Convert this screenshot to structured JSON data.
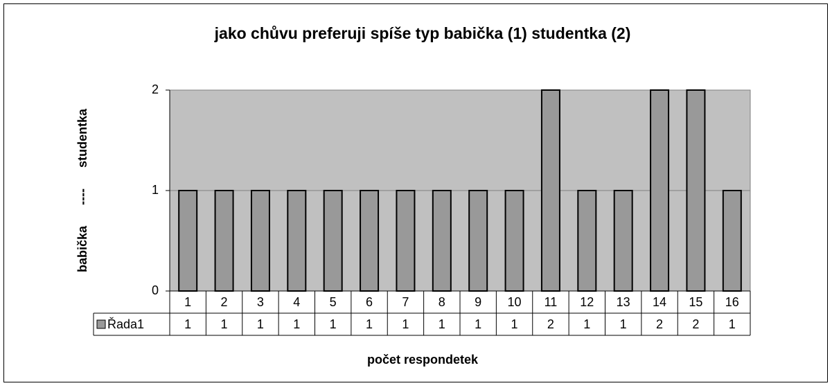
{
  "chart_data": {
    "type": "bar",
    "title": "jako chůvu preferuji spíše typ babička (1) studentka (2)",
    "x_label": "počet respondetek",
    "y_label": "babička      ----      studentka",
    "categories": [
      "1",
      "2",
      "3",
      "4",
      "5",
      "6",
      "7",
      "8",
      "9",
      "10",
      "11",
      "12",
      "13",
      "14",
      "15",
      "16"
    ],
    "series": [
      {
        "name": "Řada1",
        "color": "#999999",
        "values": [
          1,
          1,
          1,
          1,
          1,
          1,
          1,
          1,
          1,
          1,
          2,
          1,
          1,
          2,
          2,
          1
        ]
      }
    ],
    "ylim": [
      0,
      2
    ],
    "yticks": [
      0,
      1,
      2
    ],
    "grid": true,
    "plot_background": "#c0c0c0",
    "data_table": true
  }
}
